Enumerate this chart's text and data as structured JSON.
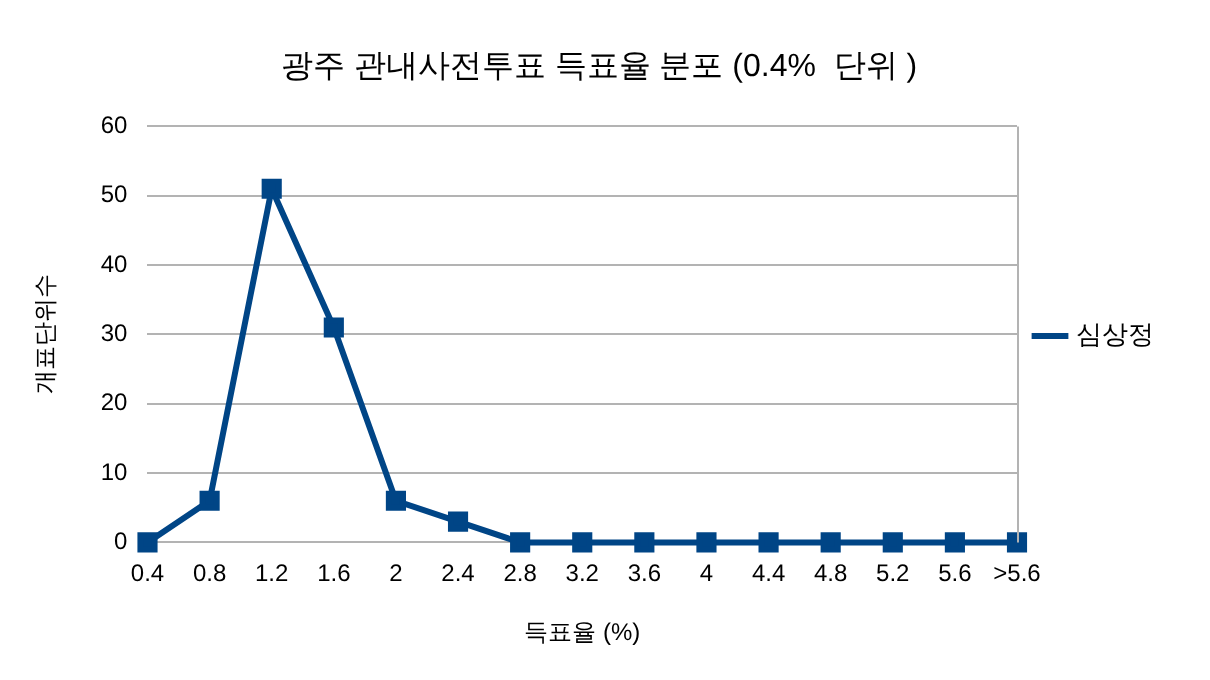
{
  "chart_data": {
    "type": "line",
    "title": "광주 관내사전투표 득표율 분포 (0.4%  단위 )",
    "xlabel": "득표율 (%)",
    "ylabel": "개표단위수",
    "categories": [
      "0.4",
      "0.8",
      "1.2",
      "1.6",
      "2",
      "2.4",
      "2.8",
      "3.2",
      "3.6",
      "4",
      "4.4",
      "4.8",
      "5.2",
      "5.6",
      ">5.6"
    ],
    "series": [
      {
        "name": "심상정",
        "color": "#004586",
        "values": [
          0,
          6,
          51,
          31,
          6,
          3,
          0,
          0,
          0,
          0,
          0,
          0,
          0,
          0,
          0
        ]
      }
    ],
    "ylim": [
      0,
      60
    ],
    "yticks": [
      0,
      10,
      20,
      30,
      40,
      50,
      60
    ],
    "grid": "y",
    "legend": "right",
    "marker": "square",
    "line_style": "solid"
  }
}
